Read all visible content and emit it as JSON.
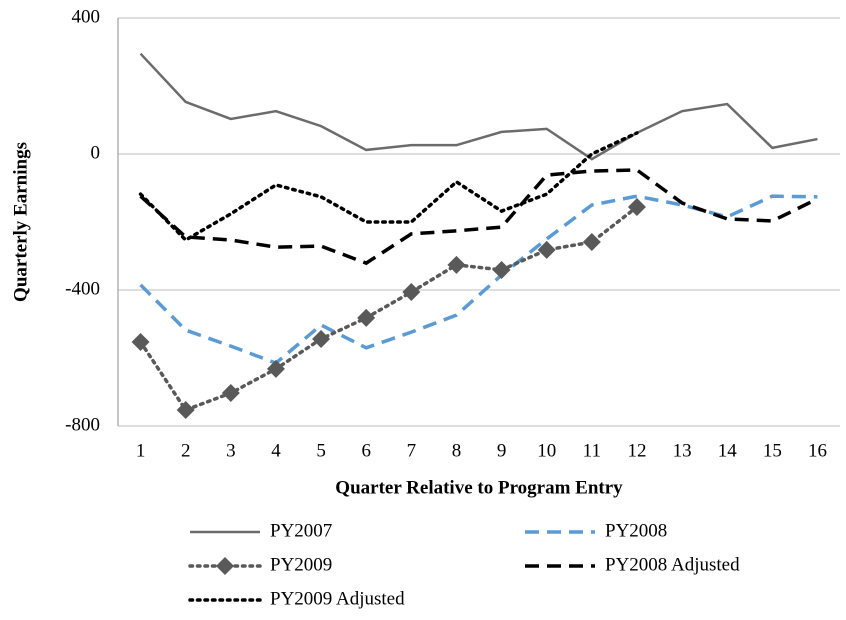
{
  "chart_data": {
    "type": "line",
    "x_label": "Quarter Relative to Program Entry",
    "y_label": "Quarterly Earnings",
    "categories": [
      "1",
      "2",
      "3",
      "4",
      "5",
      "6",
      "7",
      "8",
      "9",
      "10",
      "11",
      "12",
      "13",
      "14",
      "15",
      "16"
    ],
    "ylim": [
      -800,
      400
    ],
    "yticks": [
      -800,
      -400,
      0,
      400
    ],
    "grid": true,
    "series": [
      {
        "name": "PY2007",
        "color": "#6b6b6b",
        "style": "solid",
        "values": [
          295,
          153,
          103,
          126,
          82,
          12,
          26,
          26,
          65,
          74,
          -15,
          62,
          126,
          147,
          18,
          44
        ]
      },
      {
        "name": "PY2008",
        "color": "#5b9bd5",
        "style": "dashed",
        "values": [
          -385,
          -518,
          -565,
          -615,
          -503,
          -570,
          -524,
          -474,
          -356,
          -250,
          -150,
          -124,
          -150,
          -185,
          -124,
          -126
        ]
      },
      {
        "name": "PY2009",
        "color": "#595959",
        "style": "dotted",
        "marker": "diamond",
        "values": [
          -553,
          -753,
          -703,
          -632,
          -544,
          -482,
          -406,
          -326,
          -341,
          -282,
          -259,
          -156,
          null,
          null,
          null,
          null
        ]
      },
      {
        "name": "PY2008 Adjusted",
        "color": "#000000",
        "style": "dashed",
        "values": [
          -124,
          -244,
          -253,
          -274,
          -271,
          -321,
          -235,
          -226,
          -215,
          -62,
          -50,
          -47,
          -144,
          -191,
          -197,
          -132
        ]
      },
      {
        "name": "PY2009 Adjusted",
        "color": "#000000",
        "style": "dotted",
        "values": [
          -118,
          -253,
          -176,
          -91,
          -126,
          -200,
          -200,
          -82,
          -168,
          -118,
          0,
          62,
          null,
          null,
          null,
          null
        ]
      }
    ]
  }
}
